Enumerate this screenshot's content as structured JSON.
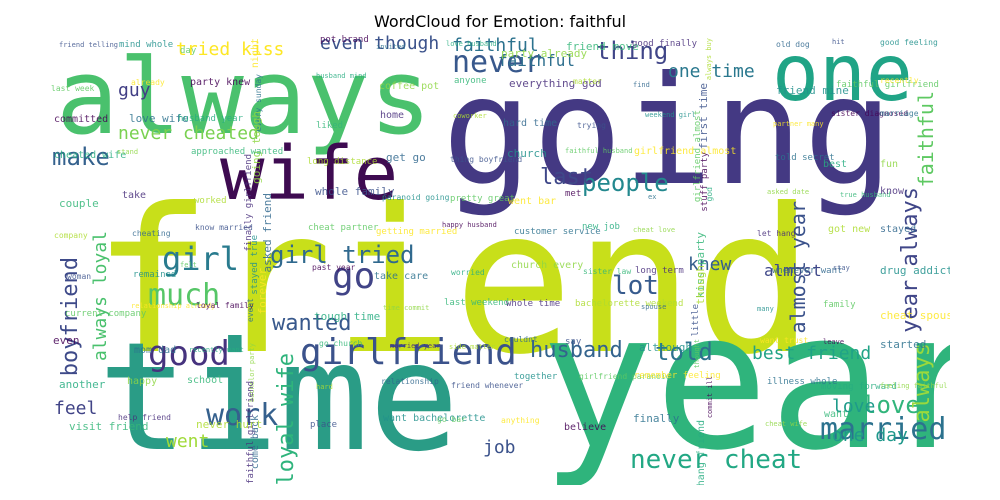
{
  "title": "WordCloud for Emotion: faithful",
  "words": [
    {
      "text": "friend",
      "color": "#c8df1a"
    },
    {
      "text": "going",
      "color": "#443983"
    },
    {
      "text": "time",
      "color": "#2a9c86"
    },
    {
      "text": "year",
      "color": "#2fb47c"
    },
    {
      "text": "always",
      "color": "#4ac16d"
    },
    {
      "text": "one",
      "color": "#20a486"
    },
    {
      "text": "wife",
      "color": "#3e0b51"
    },
    {
      "text": "girlfriend",
      "color": "#3b528b"
    },
    {
      "text": "never",
      "color": "#38588c"
    },
    {
      "text": "good",
      "color": "#46337e"
    },
    {
      "text": "go",
      "color": "#414487"
    },
    {
      "text": "girl tried",
      "color": "#30698e"
    },
    {
      "text": "girl",
      "color": "#297b8e"
    },
    {
      "text": "make",
      "color": "#34618d"
    },
    {
      "text": "much",
      "color": "#56c667"
    },
    {
      "text": "married",
      "color": "#2c728e"
    },
    {
      "text": "work",
      "color": "#35608d"
    },
    {
      "text": "husband",
      "color": "#33638d"
    },
    {
      "text": "told",
      "color": "#2d718e"
    },
    {
      "text": "wanted",
      "color": "#38588c"
    },
    {
      "text": "never cheat",
      "color": "#22a884"
    },
    {
      "text": "people",
      "color": "#23888e"
    },
    {
      "text": "lot",
      "color": "#375b8d"
    },
    {
      "text": "last",
      "color": "#3f4889"
    },
    {
      "text": "thing",
      "color": "#404588"
    },
    {
      "text": "love",
      "color": "#31b57b"
    },
    {
      "text": "even though",
      "color": "#3b528b"
    },
    {
      "text": "faithful",
      "color": "#2c728e"
    },
    {
      "text": "boyfriend",
      "color": "#3e4a89"
    },
    {
      "text": "always loyal",
      "color": "#4ac16d"
    },
    {
      "text": "almost year",
      "color": "#3b528b"
    },
    {
      "text": "year always",
      "color": "#404688"
    },
    {
      "text": "always",
      "color": "#9bd93c"
    },
    {
      "text": "faithful",
      "color": "#5ec962"
    },
    {
      "text": "loyal wife",
      "color": "#2fb47c"
    },
    {
      "text": "best friend",
      "color": "#20a386"
    },
    {
      "text": "never cheated",
      "color": "#7ad151"
    },
    {
      "text": "tried kiss",
      "color": "#fde725"
    },
    {
      "text": "one time",
      "color": "#2a788e"
    },
    {
      "text": "one day",
      "color": "#1f988b"
    },
    {
      "text": "went",
      "color": "#a0da39"
    },
    {
      "text": "feel",
      "color": "#414487"
    },
    {
      "text": "job",
      "color": "#3b528b"
    },
    {
      "text": "guy",
      "color": "#423f85"
    },
    {
      "text": "knew",
      "color": "#355f8d"
    },
    {
      "text": "love",
      "color": "#1e9b8a"
    },
    {
      "text": "almost",
      "color": "#3f4889"
    },
    {
      "text": "never",
      "color": "#8bd646"
    },
    {
      "text": "faithful",
      "color": "#2e6f8e"
    },
    {
      "text": "people",
      "color": "#34618d"
    }
  ],
  "small_words": [
    "friend telling",
    "mind whole",
    "day",
    "night",
    "pot brand",
    "invited",
    "love husband",
    "party already",
    "friend move",
    "good finally",
    "always buy",
    "old dog",
    "hit",
    "good feeling",
    "last week",
    "already",
    "party knew",
    "every sunday",
    "husband mind",
    "coffee pot",
    "anyone",
    "everything god",
    "matter",
    "find",
    "first time",
    "friend mine",
    "faithful girlfriend",
    "recently",
    "committed",
    "love wife",
    "husband year",
    "going tough",
    "liked",
    "home",
    "coworker",
    "hard time",
    "trying",
    "weekend girl",
    "girlfriend almost",
    "partner many",
    "sister diagnosed",
    "marriage",
    "cheated wife",
    "stand",
    "approached wanted",
    "finally girlfriend",
    "long distance",
    "get go",
    "thing boyfriend",
    "church",
    "faithful husband",
    "girlfriend almost",
    "stuff party",
    "told secret",
    "best",
    "fun",
    "couple",
    "take",
    "worked",
    "asked friend",
    "whole family",
    "paranoid going",
    "pretty great",
    "went bar",
    "met",
    "ex",
    "god",
    "asked date",
    "true husband",
    "know",
    "company",
    "cheating",
    "know married",
    "stayed true",
    "cheat partner",
    "getting married",
    "happy husband",
    "customer service",
    "new job",
    "cheat love",
    "kiss party",
    "let hang",
    "got new",
    "stayed",
    "woman",
    "remained",
    "felt",
    "forever",
    "past year",
    "take care",
    "worried",
    "church every",
    "sister law",
    "long term",
    "though",
    "whenever want",
    "stay",
    "drug addict",
    "current company",
    "relationship already",
    "loyal family",
    "event",
    "tough time",
    "time commit",
    "last weekend",
    "whole time",
    "bachelorette weekend",
    "spouse",
    "little",
    "many",
    "family",
    "cheat spouse",
    "even",
    "mom dad",
    "recently want",
    "bachelor party",
    "go church",
    "married year",
    "side matter",
    "couldnt",
    "say",
    "although",
    "thought",
    "want trust",
    "leave",
    "started",
    "another",
    "happy",
    "school",
    "faithful girlfriend",
    "hard",
    "relationship",
    "friend whenever",
    "together",
    "girlfriend paranoid",
    "remember feeling",
    "commit ill",
    "illness whole",
    "moving forward",
    "feeling faithful",
    "visit friend",
    "help friend",
    "never hurt",
    "come back",
    "place",
    "want bachelorette",
    "go bar",
    "anything",
    "believe",
    "finally",
    "hang friend",
    "cheat wife",
    "want"
  ]
}
